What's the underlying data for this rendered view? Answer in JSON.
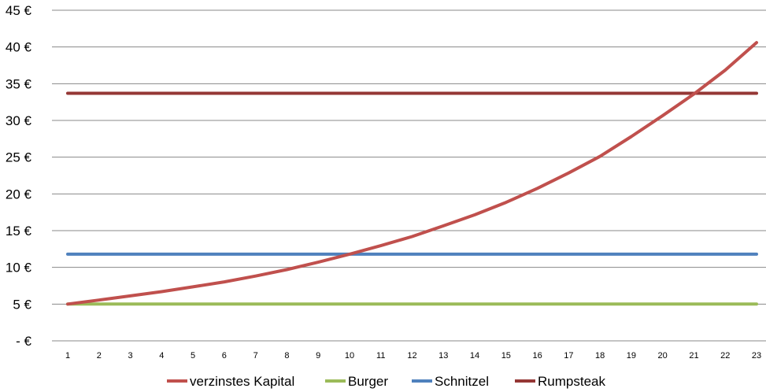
{
  "chart_data": {
    "type": "line",
    "title": "",
    "xlabel": "",
    "ylabel": "",
    "x": [
      1,
      2,
      3,
      4,
      5,
      6,
      7,
      8,
      9,
      10,
      11,
      12,
      13,
      14,
      15,
      16,
      17,
      18,
      19,
      20,
      21,
      22,
      23
    ],
    "ylim": [
      0,
      45
    ],
    "yticks": [
      "- €",
      "5 €",
      "10 €",
      "15 €",
      "20 €",
      "25 €",
      "30 €",
      "35 €",
      "40 €",
      "45 €"
    ],
    "ytick_values": [
      0,
      5,
      10,
      15,
      20,
      25,
      30,
      35,
      40,
      45
    ],
    "grid": true,
    "legend_position": "bottom",
    "series": [
      {
        "name": "verzinstes Kapital",
        "color": "#c0504d",
        "values": [
          5.0,
          5.55,
          6.12,
          6.7,
          7.35,
          8.02,
          8.82,
          9.7,
          10.7,
          11.8,
          12.95,
          14.2,
          15.65,
          17.15,
          18.85,
          20.75,
          22.85,
          25.1,
          27.8,
          30.65,
          33.6,
          36.85,
          40.6
        ]
      },
      {
        "name": "Burger",
        "color": "#9bbb59",
        "values": [
          5,
          5,
          5,
          5,
          5,
          5,
          5,
          5,
          5,
          5,
          5,
          5,
          5,
          5,
          5,
          5,
          5,
          5,
          5,
          5,
          5,
          5,
          5
        ]
      },
      {
        "name": "Schnitzel",
        "color": "#4f81bd",
        "values": [
          11.8,
          11.8,
          11.8,
          11.8,
          11.8,
          11.8,
          11.8,
          11.8,
          11.8,
          11.8,
          11.8,
          11.8,
          11.8,
          11.8,
          11.8,
          11.8,
          11.8,
          11.8,
          11.8,
          11.8,
          11.8,
          11.8,
          11.8
        ]
      },
      {
        "name": "Rumpsteak",
        "color": "#953735",
        "values": [
          33.7,
          33.7,
          33.7,
          33.7,
          33.7,
          33.7,
          33.7,
          33.7,
          33.7,
          33.7,
          33.7,
          33.7,
          33.7,
          33.7,
          33.7,
          33.7,
          33.7,
          33.7,
          33.7,
          33.7,
          33.7,
          33.7,
          33.7
        ]
      }
    ]
  }
}
